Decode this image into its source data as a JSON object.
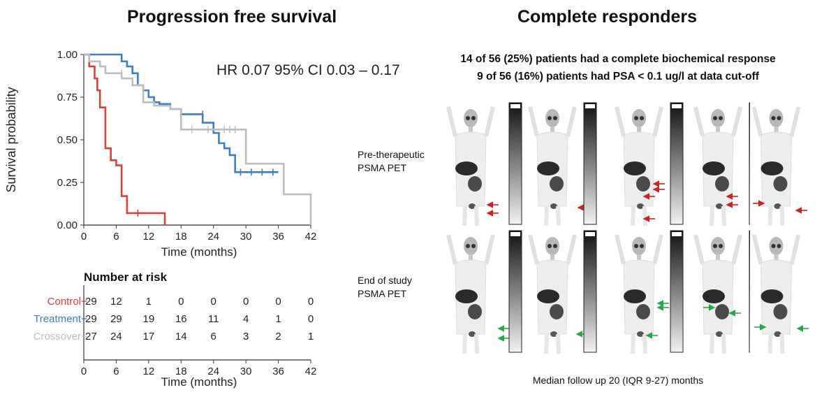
{
  "left_panel": {
    "title": "Progression free survival",
    "hr_text": "HR 0.07 95% CI 0.03 – 0.17",
    "risk_table_title": "Number at risk"
  },
  "right_panel": {
    "title": "Complete responders",
    "summary_line1": "14 of 56 (25%) patients had a complete biochemical response",
    "summary_line2": "9 of 56 (16%) patients had PSA < 0.1 ug/l at data cut-off",
    "pre_label_line1": "Pre-therapeutic",
    "pre_label_line2": "PSMA PET",
    "end_label_line1": "End of study",
    "end_label_line2": "PSMA PET",
    "footer": "Median follow up 20 (IQR 9-27) months"
  },
  "colors": {
    "control": "#d9423a",
    "treatment": "#3a7fc8",
    "crossover": "#bdbdbd",
    "pet_arrow_pre": "#cc2222",
    "pet_arrow_post": "#22a845"
  },
  "chart_data": [
    {
      "type": "line",
      "ylabel": "Survival probability",
      "xlabel": "Time (months)",
      "xlim": [
        0,
        42
      ],
      "ylim": [
        0,
        1
      ],
      "xticks": [
        "0",
        "6",
        "12",
        "18",
        "24",
        "30",
        "36",
        "42"
      ],
      "yticks": [
        "0.00",
        "0.25",
        "0.50",
        "0.75",
        "1.00"
      ],
      "series": [
        {
          "name": "Control",
          "color": "#d9423a",
          "x": [
            0,
            1,
            2,
            2.5,
            3,
            4,
            5,
            6,
            7,
            8,
            15
          ],
          "y": [
            1.0,
            0.93,
            0.86,
            0.79,
            0.69,
            0.45,
            0.38,
            0.35,
            0.17,
            0.07,
            0.0
          ],
          "censor": [
            [
              10,
              0.07
            ]
          ]
        },
        {
          "name": "Treatment",
          "color": "#3a7fc8",
          "x": [
            0,
            7,
            8,
            9,
            10,
            11,
            12,
            13,
            14,
            16,
            18,
            22,
            24,
            25,
            26,
            27,
            28,
            36
          ],
          "y": [
            1.0,
            0.96,
            0.93,
            0.89,
            0.82,
            0.79,
            0.75,
            0.72,
            0.71,
            0.68,
            0.65,
            0.6,
            0.54,
            0.48,
            0.45,
            0.41,
            0.31,
            0.31
          ],
          "censor": [
            [
              22,
              0.65
            ],
            [
              29,
              0.31
            ],
            [
              31,
              0.31
            ],
            [
              33,
              0.31
            ],
            [
              35,
              0.31
            ]
          ]
        },
        {
          "name": "Crossover",
          "color": "#bdbdbd",
          "x": [
            0,
            1,
            3,
            4,
            7,
            9,
            11,
            13,
            16,
            18,
            20,
            30,
            37,
            42
          ],
          "y": [
            1.0,
            0.96,
            0.93,
            0.89,
            0.86,
            0.82,
            0.72,
            0.7,
            0.68,
            0.56,
            0.56,
            0.36,
            0.18,
            0.0
          ],
          "censor": [
            [
              7,
              0.89
            ],
            [
              20,
              0.56
            ],
            [
              23,
              0.56
            ],
            [
              26,
              0.56
            ],
            [
              27,
              0.56
            ],
            [
              28,
              0.56
            ]
          ]
        }
      ]
    },
    {
      "type": "table",
      "title": "Number at risk",
      "xlabel": "Time (months)",
      "columns": [
        "0",
        "6",
        "12",
        "18",
        "24",
        "30",
        "36",
        "42"
      ],
      "rows": [
        {
          "name": "Control",
          "color": "#d9423a",
          "values": [
            29,
            12,
            1,
            0,
            0,
            0,
            0,
            0
          ]
        },
        {
          "name": "Treatment",
          "color": "#3a7fc8",
          "values": [
            29,
            29,
            19,
            16,
            11,
            4,
            1,
            0
          ]
        },
        {
          "name": "Crossover",
          "color": "#bdbdbd",
          "values": [
            27,
            24,
            17,
            14,
            6,
            3,
            2,
            1
          ]
        }
      ]
    }
  ]
}
